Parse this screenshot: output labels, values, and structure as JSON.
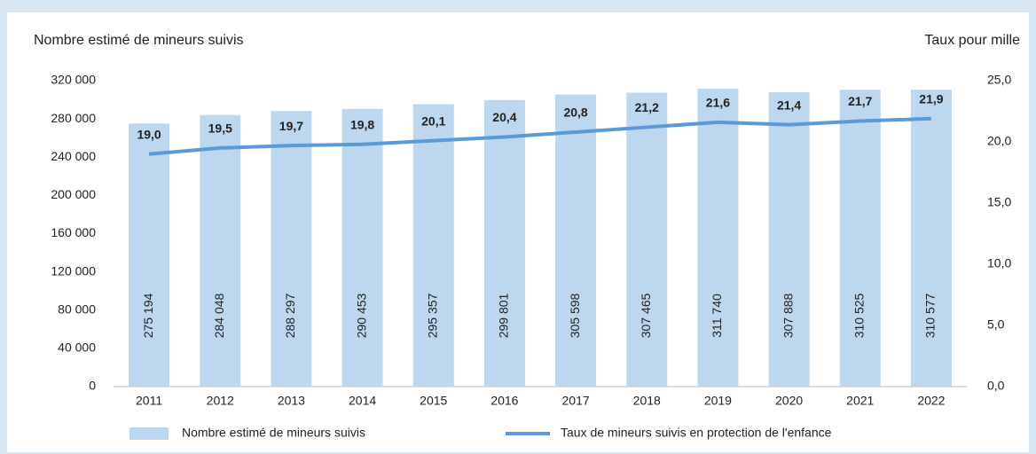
{
  "chart_data": {
    "type": "bar",
    "y_title": "Nombre estimé de mineurs suivis",
    "y2_title": "Taux pour mille",
    "categories": [
      "2011",
      "2012",
      "2013",
      "2014",
      "2015",
      "2016",
      "2017",
      "2018",
      "2019",
      "2020",
      "2021",
      "2022"
    ],
    "series": [
      {
        "name": "Nombre estimé de mineurs  suivis",
        "type": "bar",
        "color": "#bdd7ee",
        "values": [
          275194,
          284048,
          288297,
          290453,
          295357,
          299801,
          305598,
          307465,
          311740,
          307888,
          310525,
          310577
        ],
        "value_labels": [
          "275 194",
          "284 048",
          "288 297",
          "290 453",
          "295 357",
          "299 801",
          "305 598",
          "307 465",
          "311 740",
          "307 888",
          "310 525",
          "310 577"
        ]
      },
      {
        "name": "Taux de mineurs suivis en protection de l'enfance",
        "type": "line",
        "axis": "y2",
        "color": "#5b9bd5",
        "values": [
          19.0,
          19.5,
          19.7,
          19.8,
          20.1,
          20.4,
          20.8,
          21.2,
          21.6,
          21.4,
          21.7,
          21.9
        ],
        "value_labels": [
          "19,0",
          "19,5",
          "19,7",
          "19,8",
          "20,1",
          "20,4",
          "20,8",
          "21,2",
          "21,6",
          "21,4",
          "21,7",
          "21,9"
        ]
      }
    ],
    "ylim": [
      0,
      320000
    ],
    "yticks": [
      0,
      {
        "value": 40000,
        "label": "40 000"
      },
      {
        "value": 80000,
        "label": "80 000"
      },
      {
        "value": 120000,
        "label": "120 000"
      },
      {
        "value": 160000,
        "label": "160 000"
      },
      {
        "value": 200000,
        "label": "200 000"
      },
      {
        "value": 240000,
        "label": "240 000"
      },
      {
        "value": 280000,
        "label": "280 000"
      },
      {
        "value": 320000,
        "label": "320 000"
      }
    ],
    "y2lim": [
      0,
      25
    ],
    "y2ticks": [
      {
        "value": 0,
        "label": "0,0"
      },
      {
        "value": 5,
        "label": "5,0"
      },
      {
        "value": 10,
        "label": "10,0"
      },
      {
        "value": 15,
        "label": "15,0"
      },
      {
        "value": 20,
        "label": "20,0"
      },
      {
        "value": 25,
        "label": "25,0"
      }
    ],
    "legend": "bottom"
  }
}
